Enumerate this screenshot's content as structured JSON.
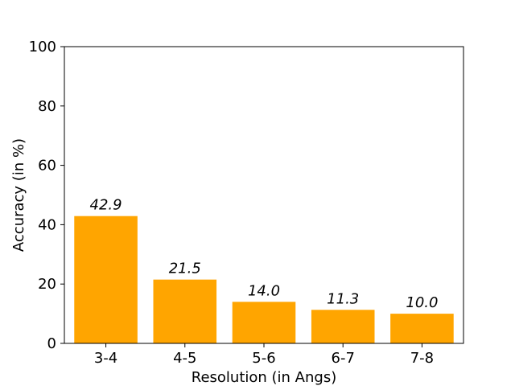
{
  "chart_data": {
    "type": "bar",
    "categories": [
      "3-4",
      "4-5",
      "5-6",
      "6-7",
      "7-8"
    ],
    "values": [
      42.9,
      21.5,
      14.0,
      11.3,
      10.0
    ],
    "data_labels": [
      "42.9",
      "21.5",
      "14.0",
      "11.3",
      "10.0"
    ],
    "title": "",
    "xlabel": "Resolution (in Angs)",
    "ylabel": "Accuracy (in %)",
    "ylim": [
      0,
      100
    ],
    "yticks": [
      0,
      20,
      40,
      60,
      80,
      100
    ],
    "grid": false,
    "legend": "none",
    "bar_color": "#ffa500"
  }
}
